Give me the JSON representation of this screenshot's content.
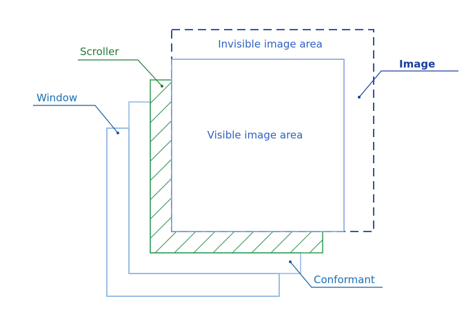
{
  "labels": {
    "scroller": "Scroller",
    "window": "Window",
    "image": "Image",
    "invisible_area": "Invisible image area",
    "visible_area": "Visible image area",
    "conformant": "Conformant"
  },
  "colors": {
    "window_stroke": "#7aa7dc",
    "window_text": "#1a6fb0",
    "scroller": "#2e9e4e",
    "scroller_text": "#1f7a34",
    "hatch": "#2f8f4a",
    "image_dash": "#1c3f8f",
    "image_text": "#1a3f9a",
    "visible_stroke": "#7b9de0",
    "area_text": "#2f62c0",
    "conformant_stroke": "#8cb8e6",
    "leader_line": "#1a5a9a",
    "leader_dot": "#1a5a9a"
  }
}
